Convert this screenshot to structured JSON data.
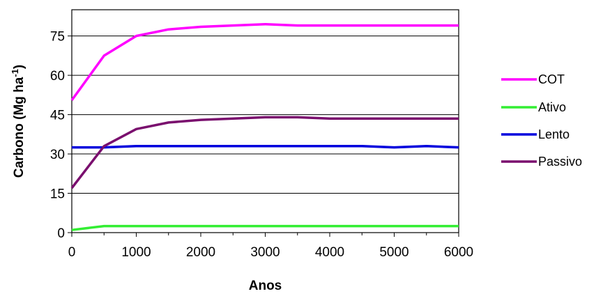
{
  "chart_data": {
    "type": "line",
    "title": "",
    "xlabel": "Anos",
    "ylabel_main": "Carbono (Mg ha",
    "ylabel_sup": "-1",
    "ylabel_close": ")",
    "xlim": [
      0,
      6000
    ],
    "ylim": [
      0,
      85
    ],
    "xticks": [
      0,
      1000,
      2000,
      3000,
      4000,
      5000,
      6000
    ],
    "yticks": [
      0,
      15,
      30,
      45,
      60,
      75
    ],
    "grid": "horizontal",
    "legend_position": "right",
    "x": [
      0,
      500,
      1000,
      1500,
      2000,
      2500,
      3000,
      3500,
      4000,
      4500,
      5000,
      5500,
      6000
    ],
    "series": [
      {
        "name": "COT",
        "color": "#ff00ff",
        "values": [
          50.5,
          67.5,
          75,
          77.5,
          78.5,
          79,
          79.5,
          79,
          79,
          79,
          79,
          79,
          79
        ]
      },
      {
        "name": "Ativo",
        "color": "#33ee33",
        "values": [
          1,
          2.5,
          2.5,
          2.5,
          2.5,
          2.5,
          2.5,
          2.5,
          2.5,
          2.5,
          2.5,
          2.5,
          2.5
        ]
      },
      {
        "name": "Lento",
        "color": "#0000dd",
        "values": [
          32.5,
          32.5,
          33,
          33,
          33,
          33,
          33,
          33,
          33,
          33,
          32.5,
          33,
          32.5
        ]
      },
      {
        "name": "Passivo",
        "color": "#7a0f6e",
        "values": [
          17,
          33,
          39.5,
          42,
          43,
          43.5,
          44,
          44,
          43.5,
          43.5,
          43.5,
          43.5,
          43.5
        ]
      }
    ]
  }
}
